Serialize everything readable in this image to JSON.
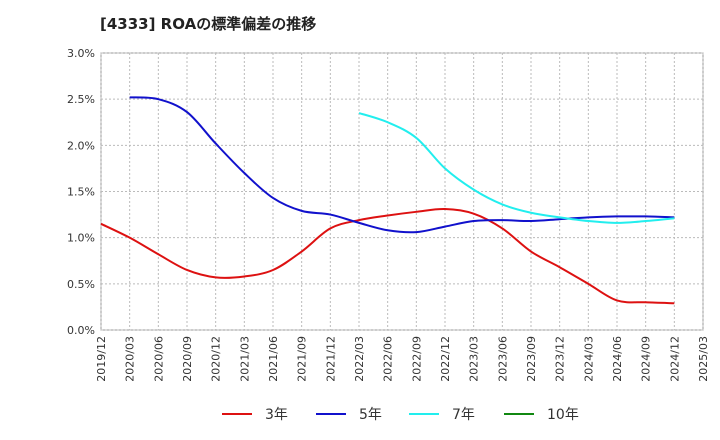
{
  "chart_data": {
    "type": "line",
    "title": "[4333]  ROAの標準偏差の推移",
    "xlabel": "",
    "ylabel": "",
    "x": [
      "2019/12",
      "2020/03",
      "2020/06",
      "2020/09",
      "2020/12",
      "2021/03",
      "2021/06",
      "2021/09",
      "2021/12",
      "2022/03",
      "2022/06",
      "2022/09",
      "2022/12",
      "2023/03",
      "2023/06",
      "2023/09",
      "2023/12",
      "2024/03",
      "2024/06",
      "2024/09",
      "2024/12",
      "2025/03"
    ],
    "y_ticks": [
      "0.0%",
      "0.5%",
      "1.0%",
      "1.5%",
      "2.0%",
      "2.5%",
      "3.0%"
    ],
    "ylim": [
      0,
      3.0
    ],
    "y_unit": "%",
    "grid": true,
    "legend_position": "bottom",
    "series": [
      {
        "name": "3年",
        "color": "#dd1111",
        "values": [
          1.15,
          1.0,
          0.82,
          0.65,
          0.57,
          0.58,
          0.65,
          0.85,
          1.1,
          1.19,
          1.24,
          1.28,
          1.31,
          1.26,
          1.1,
          0.85,
          0.68,
          0.5,
          0.32,
          0.3,
          0.29,
          null
        ]
      },
      {
        "name": "5年",
        "color": "#1111cc",
        "values": [
          null,
          2.52,
          2.5,
          2.36,
          2.02,
          1.7,
          1.43,
          1.29,
          1.25,
          1.16,
          1.08,
          1.06,
          1.12,
          1.18,
          1.19,
          1.18,
          1.2,
          1.22,
          1.23,
          1.23,
          1.22,
          null
        ]
      },
      {
        "name": "7年",
        "color": "#22eeee",
        "values": [
          null,
          null,
          null,
          null,
          null,
          null,
          null,
          null,
          null,
          2.35,
          2.25,
          2.08,
          1.75,
          1.52,
          1.36,
          1.27,
          1.22,
          1.18,
          1.16,
          1.18,
          1.21,
          null
        ]
      },
      {
        "name": "10年",
        "color": "#118811",
        "values": [
          null,
          null,
          null,
          null,
          null,
          null,
          null,
          null,
          null,
          null,
          null,
          null,
          null,
          null,
          null,
          null,
          null,
          null,
          null,
          null,
          null,
          null
        ]
      }
    ]
  }
}
